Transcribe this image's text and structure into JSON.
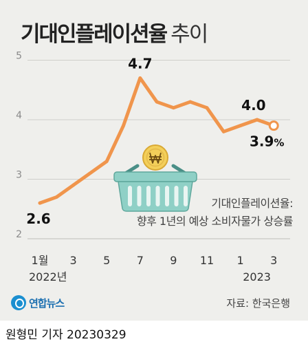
{
  "title": {
    "main": "기대인플레이션율",
    "sub": "추이"
  },
  "annotation": {
    "line1": "기대인플레이션율:",
    "line2": "향후 1년의 예상 소비자물가 상승률"
  },
  "source": "자료: 한국은행",
  "logo_text": "연합뉴스",
  "byline": "원형민 기자  20230329",
  "colors": {
    "line": "#f0954c",
    "background": "#efefec",
    "grid": "#cfcfcb",
    "basket": "#8fd0c6",
    "coin": "#f3cf5a"
  },
  "icons": {
    "basket": "shopping-basket-icon",
    "coin": "won-coin-icon"
  },
  "chart_data": {
    "type": "line",
    "title": "기대인플레이션율 추이",
    "x": [
      "2022-01",
      "2022-02",
      "2022-03",
      "2022-04",
      "2022-05",
      "2022-06",
      "2022-07",
      "2022-08",
      "2022-09",
      "2022-10",
      "2022-11",
      "2022-12",
      "2023-01",
      "2023-02",
      "2023-03"
    ],
    "x_tick_labels": [
      "1월",
      "3",
      "5",
      "7",
      "9",
      "11",
      "1",
      "3"
    ],
    "x_year_labels": [
      "2022년",
      "2023"
    ],
    "values": [
      2.6,
      2.7,
      2.9,
      3.1,
      3.3,
      3.9,
      4.7,
      4.3,
      4.2,
      4.3,
      4.2,
      3.8,
      3.9,
      4.0,
      3.9
    ],
    "y_ticks": [
      "2",
      "3",
      "4",
      "5"
    ],
    "ylim": [
      2,
      5
    ],
    "grid": true,
    "data_labels": [
      {
        "x": "2022-01",
        "text": "2.6"
      },
      {
        "x": "2022-07",
        "text": "4.7"
      },
      {
        "x": "2023-02",
        "text": "4.0"
      },
      {
        "x": "2023-03",
        "text": "3.9",
        "unit": "%"
      }
    ]
  }
}
